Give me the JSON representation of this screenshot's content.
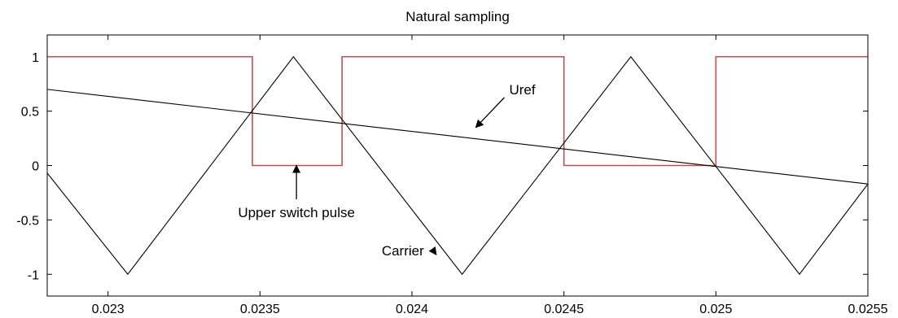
{
  "chart_data": {
    "type": "line",
    "title": "Natural sampling",
    "xlabel": "",
    "ylabel": "",
    "xlim": [
      0.0228,
      0.0255
    ],
    "ylim": [
      -1.2,
      1.2
    ],
    "x_ticks": [
      0.023,
      0.0235,
      0.024,
      0.0245,
      0.025,
      0.0255
    ],
    "x_tick_labels": [
      "0.023",
      "0.0235",
      "0.024",
      "0.0245",
      "0.025",
      "0.0255"
    ],
    "y_ticks": [
      1,
      0.5,
      0,
      -0.5,
      -1
    ],
    "y_tick_labels": [
      "1",
      "0.5",
      "0",
      "-0.5",
      "-1"
    ],
    "grid": false,
    "series": [
      {
        "name": "Upper switch pulse",
        "color": "#c0504d",
        "step": true,
        "x": [
          0.0228,
          0.023475,
          0.023475,
          0.02377,
          0.02377,
          0.0245,
          0.0245,
          0.025,
          0.025,
          0.0255
        ],
        "y": [
          1,
          1,
          0,
          0,
          1,
          1,
          0,
          0,
          1,
          1
        ]
      },
      {
        "name": "Carrier",
        "color": "#000000",
        "x": [
          0.0228,
          0.023065,
          0.02361,
          0.024165,
          0.02472,
          0.025275,
          0.0255
        ],
        "y": [
          -0.07,
          -1,
          1,
          -1,
          1,
          -1,
          -0.17
        ]
      },
      {
        "name": "Uref",
        "color": "#000000",
        "x": [
          0.0228,
          0.0255
        ],
        "y": [
          0.7,
          -0.17
        ]
      }
    ],
    "annotations": [
      {
        "text": "Uref",
        "text_x": 0.02432,
        "text_y": 0.7,
        "arrow_to_x": 0.02421,
        "arrow_to_y": 0.35
      },
      {
        "text": "Upper switch pulse",
        "text_x": 0.02362,
        "text_y": -0.43,
        "arrow_to_x": 0.02362,
        "arrow_to_y": 0.0
      },
      {
        "text": "Carrier",
        "text_x": 0.02397,
        "text_y": -0.78,
        "arrow_to_x": 0.02408,
        "arrow_to_y": -0.82
      }
    ]
  }
}
